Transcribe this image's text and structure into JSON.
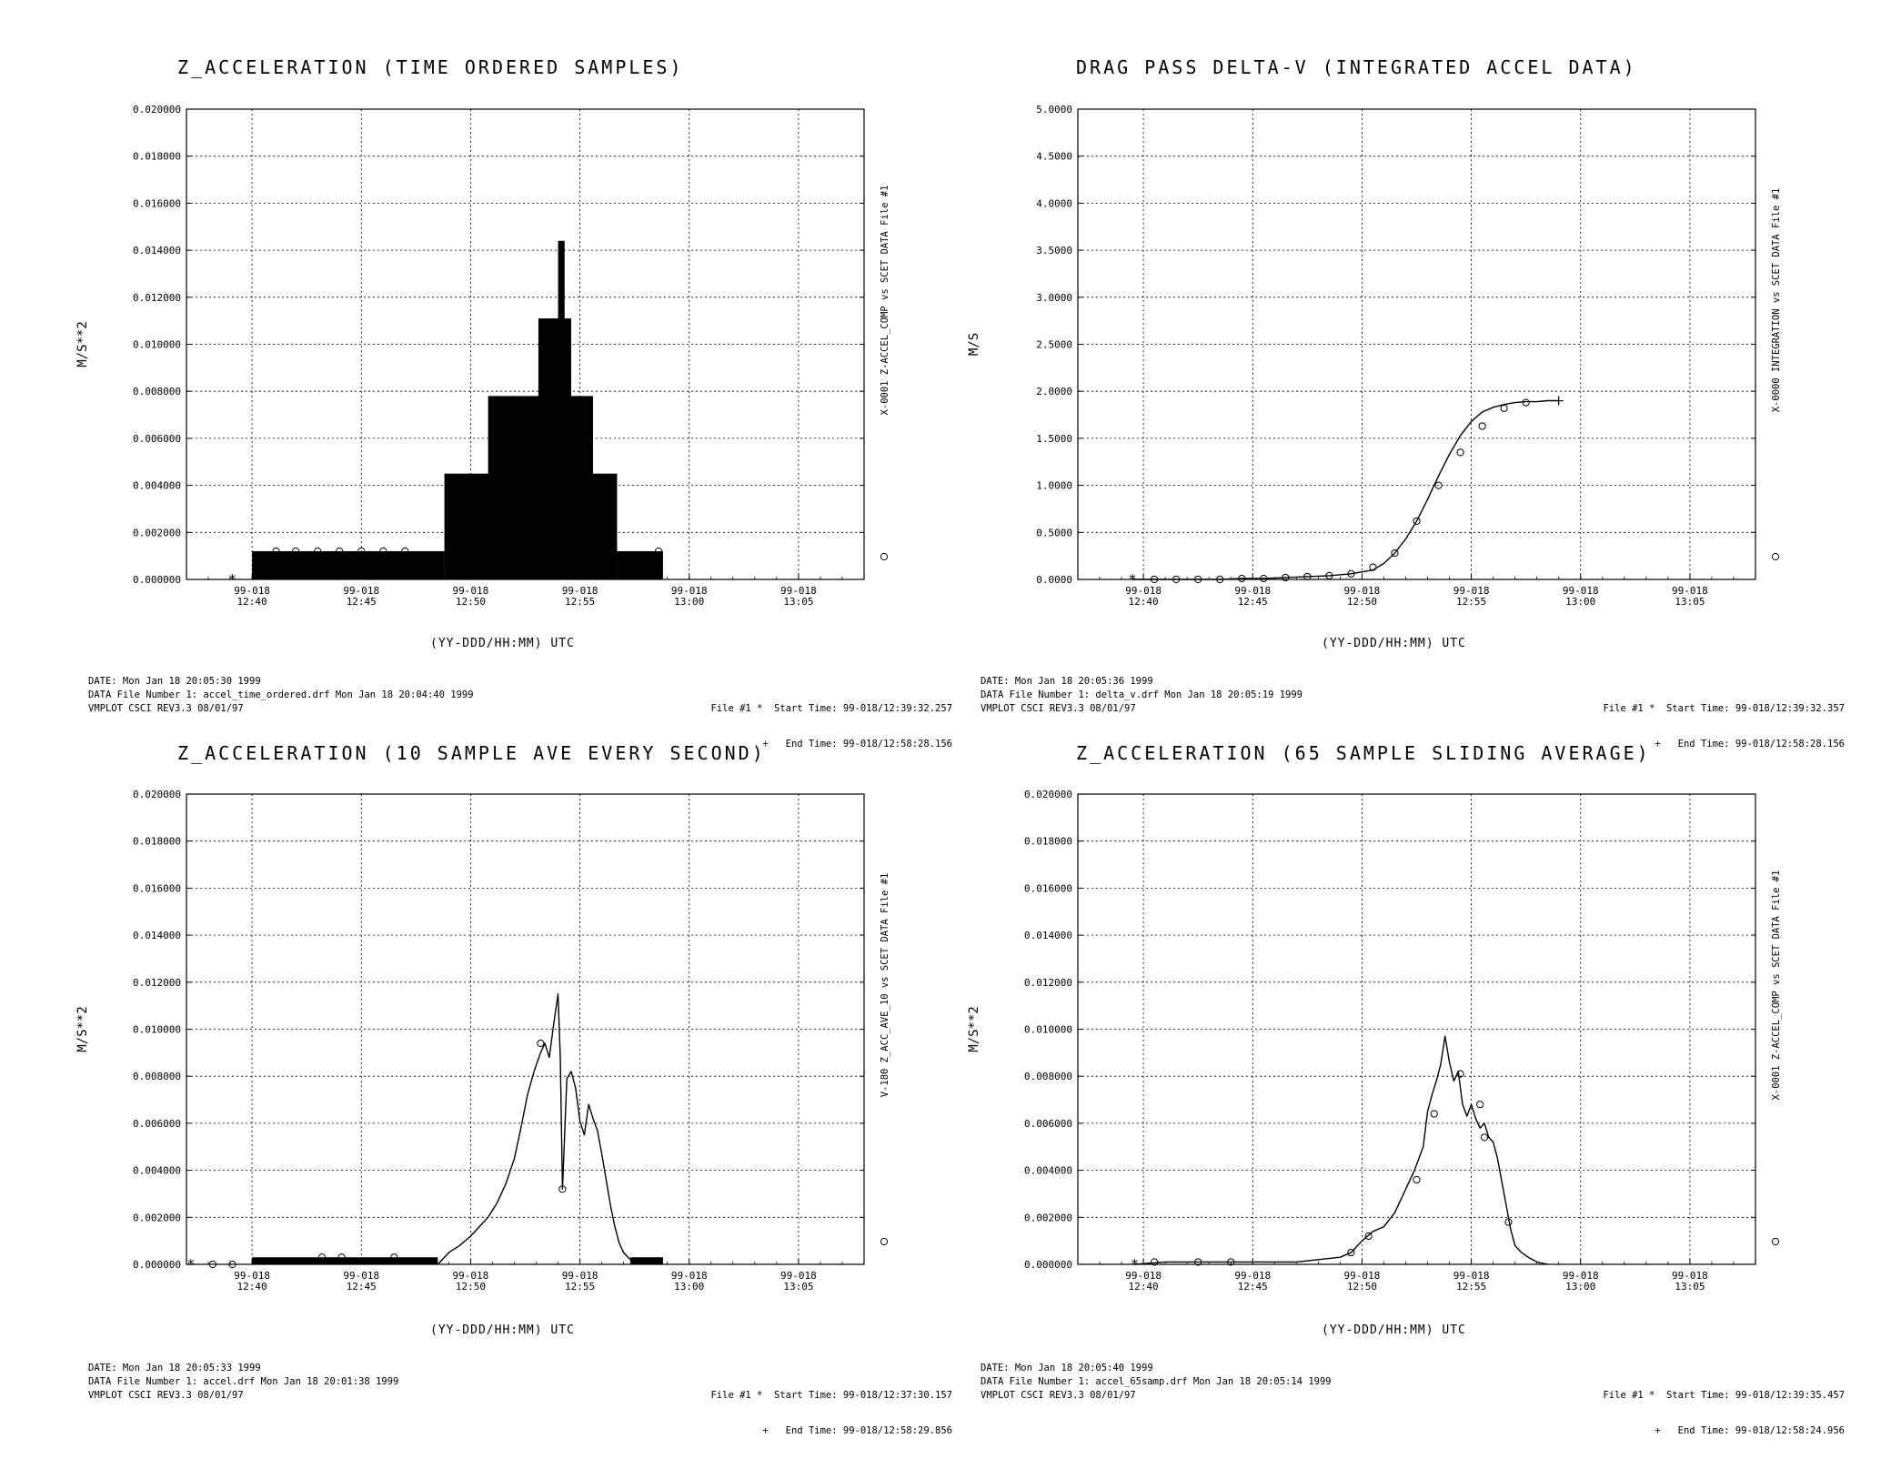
{
  "panels": [
    {
      "title": "Z_ACCELERATION (TIME ORDERED SAMPLES)",
      "ylabel": "M/S**2",
      "xlabel": "(YY-DDD/HH:MM) UTC",
      "right_label": "X-0001 Z-ACCEL_COMP vs SCET  DATA File #1",
      "right_marker": "o",
      "footer": [
        "DATE: Mon Jan 18 20:05:30 1999",
        "DATA File Number 1: accel_time_ordered.drf  Mon Jan 18 20:04:40 1999",
        "VMPLOT CSCI REV3.3 08/01/97"
      ],
      "file_info": [
        "File #1 *  Start Time: 99-018/12:39:32.257",
        "+   End Time: 99-018/12:58:28.156"
      ]
    },
    {
      "title": "DRAG PASS DELTA-V (INTEGRATED ACCEL DATA)",
      "ylabel": "M/S",
      "xlabel": "(YY-DDD/HH:MM) UTC",
      "right_label": "X-0000 INTEGRATION vs SCET  DATA File #1",
      "right_marker": "o",
      "footer": [
        "DATE: Mon Jan 18 20:05:36 1999",
        "DATA File Number 1: delta_v.drf  Mon Jan 18 20:05:19 1999",
        "VMPLOT CSCI REV3.3 08/01/97"
      ],
      "file_info": [
        "File #1 *  Start Time: 99-018/12:39:32.357",
        "+   End Time: 99-018/12:58:28.156"
      ]
    },
    {
      "title": "Z_ACCELERATION (10 SAMPLE AVE EVERY SECOND)",
      "ylabel": "M/S**2",
      "xlabel": "(YY-DDD/HH:MM) UTC",
      "right_label": "V-180 Z_ACC_AVE_10 vs SCET  DATA File #1",
      "right_marker": "o",
      "footer": [
        "DATE: Mon Jan 18 20:05:33 1999",
        "DATA File Number 1: accel.drf  Mon Jan 18 20:01:38 1999",
        "VMPLOT CSCI REV3.3 08/01/97"
      ],
      "file_info": [
        "File #1 *  Start Time: 99-018/12:37:30.157",
        "+   End Time: 99-018/12:58:29.856"
      ]
    },
    {
      "title": "Z_ACCELERATION (65 SAMPLE SLIDING AVERAGE)",
      "ylabel": "M/S**2",
      "xlabel": "(YY-DDD/HH:MM) UTC",
      "right_label": "X-0001 Z-ACCEL_COMP vs SCET  DATA File #1",
      "right_marker": "o",
      "footer": [
        "DATE: Mon Jan 18 20:05:40 1999",
        "DATA File Number 1: accel_65samp.drf  Mon Jan 18 20:05:14 1999",
        "VMPLOT CSCI REV3.3 08/01/97"
      ],
      "file_info": [
        "File #1 *  Start Time: 99-018/12:39:35.457",
        "+   End Time: 99-018/12:58:24.956"
      ]
    }
  ],
  "chart_data": [
    {
      "type": "bar",
      "title": "Z_ACCELERATION (TIME ORDERED SAMPLES)",
      "xlabel": "(YY-DDD/HH:MM) UTC",
      "ylabel": "M/S**2",
      "x_unit": "minutes after 99-018/12:00",
      "xlim": [
        37,
        68
      ],
      "ylim": [
        0,
        0.02
      ],
      "grid": true,
      "xticks": [
        {
          "x": 40,
          "l1": "99-018",
          "l2": "12:40"
        },
        {
          "x": 45,
          "l1": "99-018",
          "l2": "12:45"
        },
        {
          "x": 50,
          "l1": "99-018",
          "l2": "12:50"
        },
        {
          "x": 55,
          "l1": "99-018",
          "l2": "12:55"
        },
        {
          "x": 60,
          "l1": "99-018",
          "l2": "13:00"
        },
        {
          "x": 65,
          "l1": "99-018",
          "l2": "13:05"
        }
      ],
      "yticks": [
        "0.000000",
        "0.002000",
        "0.004000",
        "0.006000",
        "0.008000",
        "0.010000",
        "0.012000",
        "0.014000",
        "0.016000",
        "0.018000",
        "0.020000"
      ],
      "series": [
        {
          "kind": "blocks",
          "segments": [
            [
              40.0,
              48.8,
              0.0012
            ],
            [
              48.8,
              52.2,
              0.0045
            ],
            [
              50.8,
              55.6,
              0.0078
            ],
            [
              53.1,
              54.6,
              0.0111
            ],
            [
              54.0,
              54.3,
              0.0144
            ],
            [
              55.6,
              56.7,
              0.0045
            ],
            [
              56.7,
              58.8,
              0.0012
            ]
          ]
        },
        {
          "kind": "markers",
          "marker": "o",
          "points": [
            [
              41.1,
              0.0012
            ],
            [
              42.0,
              0.0012
            ],
            [
              43.0,
              0.0012
            ],
            [
              44.0,
              0.0012
            ],
            [
              45.0,
              0.0012
            ],
            [
              46.0,
              0.0012
            ],
            [
              47.0,
              0.0012
            ],
            [
              49.8,
              0.0012
            ],
            [
              50.5,
              0.0012
            ],
            [
              51.6,
              0.0045
            ],
            [
              58.6,
              0.0012
            ]
          ]
        },
        {
          "kind": "markers",
          "marker": "*",
          "points": [
            [
              39.1,
              0.0
            ]
          ]
        }
      ]
    },
    {
      "type": "line",
      "title": "DRAG PASS DELTA-V (INTEGRATED ACCEL DATA)",
      "xlabel": "(YY-DDD/HH:MM) UTC",
      "ylabel": "M/S",
      "x_unit": "minutes after 99-018/12:00",
      "xlim": [
        37,
        68
      ],
      "ylim": [
        0,
        5
      ],
      "grid": true,
      "xticks": [
        {
          "x": 40,
          "l1": "99-018",
          "l2": "12:40"
        },
        {
          "x": 45,
          "l1": "99-018",
          "l2": "12:45"
        },
        {
          "x": 50,
          "l1": "99-018",
          "l2": "12:50"
        },
        {
          "x": 55,
          "l1": "99-018",
          "l2": "12:55"
        },
        {
          "x": 60,
          "l1": "99-018",
          "l2": "13:00"
        },
        {
          "x": 65,
          "l1": "99-018",
          "l2": "13:05"
        }
      ],
      "yticks": [
        "0.0000",
        "0.5000",
        "1.0000",
        "1.5000",
        "2.0000",
        "2.5000",
        "3.0000",
        "3.5000",
        "4.0000",
        "4.5000",
        "5.0000"
      ],
      "series": [
        {
          "kind": "line",
          "x": [
            39.5,
            40.5,
            41.5,
            42.5,
            43.5,
            44.5,
            45.5,
            46.5,
            47.5,
            48.5,
            49.5,
            50.5,
            51.0,
            51.5,
            52.0,
            52.5,
            53.0,
            53.5,
            54.0,
            54.5,
            55.0,
            55.5,
            56.0,
            56.5,
            57.0,
            57.5,
            58.0,
            58.5,
            59.0
          ],
          "y": [
            0.0,
            0.0,
            0.0,
            0.0,
            0.0,
            0.01,
            0.01,
            0.02,
            0.03,
            0.04,
            0.06,
            0.1,
            0.17,
            0.28,
            0.43,
            0.62,
            0.85,
            1.1,
            1.33,
            1.53,
            1.68,
            1.78,
            1.83,
            1.86,
            1.88,
            1.89,
            1.89,
            1.9,
            1.9
          ]
        },
        {
          "kind": "markers",
          "marker": "o",
          "points": [
            [
              40.5,
              0.0
            ],
            [
              41.5,
              0.0
            ],
            [
              42.5,
              0.0
            ],
            [
              43.5,
              0.0
            ],
            [
              44.5,
              0.01
            ],
            [
              45.5,
              0.01
            ],
            [
              46.5,
              0.02
            ],
            [
              47.5,
              0.03
            ],
            [
              48.5,
              0.04
            ],
            [
              49.5,
              0.06
            ],
            [
              50.5,
              0.13
            ],
            [
              51.5,
              0.28
            ],
            [
              52.5,
              0.62
            ],
            [
              53.5,
              1.0
            ],
            [
              54.5,
              1.35
            ],
            [
              55.5,
              1.63
            ],
            [
              56.5,
              1.82
            ],
            [
              57.5,
              1.88
            ]
          ]
        },
        {
          "kind": "markers",
          "marker": "*",
          "points": [
            [
              39.5,
              0.0
            ]
          ]
        },
        {
          "kind": "markers",
          "marker": "+",
          "points": [
            [
              59.0,
              1.9
            ]
          ]
        }
      ]
    },
    {
      "type": "line",
      "title": "Z_ACCELERATION (10 SAMPLE AVE EVERY SECOND)",
      "xlabel": "(YY-DDD/HH:MM) UTC",
      "ylabel": "M/S**2",
      "x_unit": "minutes after 99-018/12:00",
      "xlim": [
        37,
        68
      ],
      "ylim": [
        0,
        0.02
      ],
      "grid": true,
      "xticks": [
        {
          "x": 40,
          "l1": "99-018",
          "l2": "12:40"
        },
        {
          "x": 45,
          "l1": "99-018",
          "l2": "12:45"
        },
        {
          "x": 50,
          "l1": "99-018",
          "l2": "12:50"
        },
        {
          "x": 55,
          "l1": "99-018",
          "l2": "12:55"
        },
        {
          "x": 60,
          "l1": "99-018",
          "l2": "13:00"
        },
        {
          "x": 65,
          "l1": "99-018",
          "l2": "13:05"
        }
      ],
      "yticks": [
        "0.000000",
        "0.002000",
        "0.004000",
        "0.006000",
        "0.008000",
        "0.010000",
        "0.012000",
        "0.014000",
        "0.016000",
        "0.018000",
        "0.020000"
      ],
      "series": [
        {
          "kind": "blocks",
          "segments": [
            [
              40.0,
              48.5,
              0.0003
            ],
            [
              57.3,
              58.8,
              0.0003
            ]
          ]
        },
        {
          "kind": "line",
          "x": [
            48.5,
            49.0,
            49.5,
            50.0,
            50.4,
            50.8,
            51.2,
            51.6,
            52.0,
            52.3,
            52.6,
            52.9,
            53.2,
            53.4,
            53.6,
            53.8,
            54.0,
            54.1,
            54.2,
            54.4,
            54.6,
            54.8,
            55.0,
            55.2,
            55.4,
            55.6,
            55.8,
            56.0,
            56.2,
            56.4,
            56.6,
            56.8,
            57.0,
            57.3
          ],
          "y": [
            0.0,
            0.0005,
            0.0008,
            0.0012,
            0.0016,
            0.002,
            0.0026,
            0.0034,
            0.0045,
            0.0058,
            0.0072,
            0.0082,
            0.009,
            0.0094,
            0.0088,
            0.0102,
            0.0115,
            0.0088,
            0.0032,
            0.0079,
            0.0082,
            0.0075,
            0.0061,
            0.0055,
            0.0068,
            0.0062,
            0.0057,
            0.0047,
            0.0036,
            0.0025,
            0.0016,
            0.0009,
            0.0005,
            0.0002
          ]
        },
        {
          "kind": "markers",
          "marker": "o",
          "points": [
            [
              38.2,
              0.0
            ],
            [
              39.1,
              0.0
            ],
            [
              43.2,
              0.0003
            ],
            [
              44.1,
              0.0003
            ],
            [
              46.5,
              0.0003
            ],
            [
              53.2,
              0.0094
            ],
            [
              54.2,
              0.0032
            ]
          ]
        },
        {
          "kind": "markers",
          "marker": "*",
          "points": [
            [
              37.2,
              0.0
            ]
          ]
        }
      ]
    },
    {
      "type": "line",
      "title": "Z_ACCELERATION (65 SAMPLE SLIDING AVERAGE)",
      "xlabel": "(YY-DDD/HH:MM) UTC",
      "ylabel": "M/S**2",
      "x_unit": "minutes after 99-018/12:00",
      "xlim": [
        37,
        68
      ],
      "ylim": [
        0,
        0.02
      ],
      "grid": true,
      "xticks": [
        {
          "x": 40,
          "l1": "99-018",
          "l2": "12:40"
        },
        {
          "x": 45,
          "l1": "99-018",
          "l2": "12:45"
        },
        {
          "x": 50,
          "l1": "99-018",
          "l2": "12:50"
        },
        {
          "x": 55,
          "l1": "99-018",
          "l2": "12:55"
        },
        {
          "x": 60,
          "l1": "99-018",
          "l2": "13:00"
        },
        {
          "x": 65,
          "l1": "99-018",
          "l2": "13:05"
        }
      ],
      "yticks": [
        "0.000000",
        "0.002000",
        "0.004000",
        "0.006000",
        "0.008000",
        "0.010000",
        "0.012000",
        "0.014000",
        "0.016000",
        "0.018000",
        "0.020000"
      ],
      "series": [
        {
          "kind": "line",
          "x": [
            39.6,
            41.0,
            43.0,
            45.0,
            47.0,
            48.0,
            49.0,
            49.5,
            50.0,
            50.5,
            51.0,
            51.5,
            52.0,
            52.4,
            52.8,
            53.0,
            53.2,
            53.4,
            53.6,
            53.8,
            54.0,
            54.2,
            54.4,
            54.6,
            54.8,
            55.0,
            55.2,
            55.4,
            55.6,
            55.8,
            56.0,
            56.2,
            56.4,
            56.6,
            56.8,
            57.0,
            57.3,
            57.6,
            58.0,
            58.5
          ],
          "y": [
            0.0,
            0.0001,
            0.0001,
            0.0001,
            0.0001,
            0.0002,
            0.0003,
            0.0005,
            0.001,
            0.0014,
            0.0016,
            0.0022,
            0.0032,
            0.004,
            0.005,
            0.0065,
            0.0072,
            0.0078,
            0.0085,
            0.0097,
            0.0086,
            0.0078,
            0.0082,
            0.0068,
            0.0063,
            0.0068,
            0.0062,
            0.0058,
            0.006,
            0.0054,
            0.0052,
            0.0045,
            0.0035,
            0.0025,
            0.0015,
            0.0008,
            0.0005,
            0.0003,
            0.0001,
            0.0
          ]
        },
        {
          "kind": "markers",
          "marker": "o",
          "points": [
            [
              40.5,
              0.0001
            ],
            [
              42.5,
              0.0001
            ],
            [
              44.0,
              0.0001
            ],
            [
              49.5,
              0.0005
            ],
            [
              50.3,
              0.0012
            ],
            [
              52.5,
              0.0036
            ],
            [
              53.3,
              0.0064
            ],
            [
              54.5,
              0.0081
            ],
            [
              55.4,
              0.0068
            ],
            [
              55.6,
              0.0054
            ],
            [
              56.7,
              0.0018
            ]
          ]
        },
        {
          "kind": "markers",
          "marker": "*",
          "points": [
            [
              39.6,
              0.0
            ]
          ]
        }
      ]
    }
  ]
}
